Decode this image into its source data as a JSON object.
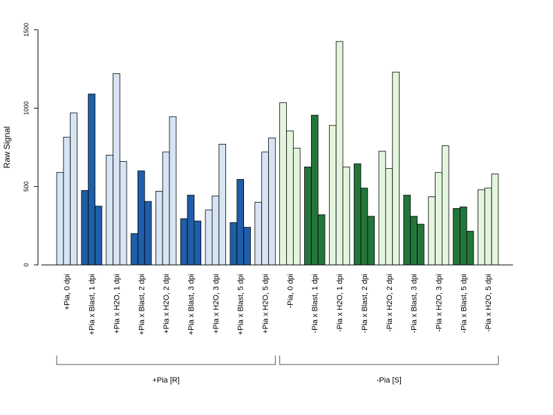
{
  "chart_data": {
    "type": "bar",
    "ylabel": "Raw Signal",
    "ylim": [
      0,
      1500
    ],
    "yticks": [
      0,
      500,
      1000,
      1500
    ],
    "grid": false,
    "legend": "none",
    "bars_per_category": 3,
    "categories": [
      {
        "label": "+Pia, 0 dpi",
        "values": [
          590,
          815,
          970
        ],
        "color": "light-blue"
      },
      {
        "label": "+Pia x Blast, 1 dpi",
        "values": [
          475,
          1090,
          375
        ],
        "color": "dark-blue"
      },
      {
        "label": "+Pia x H2O, 1 dpi",
        "values": [
          700,
          1220,
          660
        ],
        "color": "light-blue"
      },
      {
        "label": "+Pia x Blast, 2 dpi",
        "values": [
          200,
          600,
          405
        ],
        "color": "dark-blue"
      },
      {
        "label": "+Pia x H2O, 2 dpi",
        "values": [
          470,
          720,
          945
        ],
        "color": "light-blue"
      },
      {
        "label": "+Pia x Blast, 3 dpi",
        "values": [
          295,
          445,
          280
        ],
        "color": "dark-blue"
      },
      {
        "label": "+Pia x H2O, 3 dpi",
        "values": [
          350,
          440,
          770
        ],
        "color": "light-blue"
      },
      {
        "label": "+Pia x Blast, 5 dpi",
        "values": [
          270,
          545,
          240
        ],
        "color": "dark-blue"
      },
      {
        "label": "+Pia x H2O, 5 dpi",
        "values": [
          400,
          720,
          810
        ],
        "color": "light-blue"
      },
      {
        "label": "-Pia, 0 dpi",
        "values": [
          1035,
          855,
          745
        ],
        "color": "light-green"
      },
      {
        "label": "-Pia x Blast, 1 dpi",
        "values": [
          625,
          955,
          320
        ],
        "color": "dark-green"
      },
      {
        "label": "-Pia x H2O, 1 dpi",
        "values": [
          890,
          1425,
          625
        ],
        "color": "light-green"
      },
      {
        "label": "-Pia x Blast, 2 dpi",
        "values": [
          645,
          490,
          310
        ],
        "color": "dark-green"
      },
      {
        "label": "-Pia x H2O, 2 dpi",
        "values": [
          725,
          615,
          1230
        ],
        "color": "light-green"
      },
      {
        "label": "-Pia x Blast, 3 dpi",
        "values": [
          445,
          310,
          260
        ],
        "color": "dark-green"
      },
      {
        "label": "-Pia x H2O, 3 dpi",
        "values": [
          435,
          590,
          760
        ],
        "color": "light-green"
      },
      {
        "label": "-Pia x Blast, 5 dpi",
        "values": [
          360,
          370,
          215
        ],
        "color": "dark-green"
      },
      {
        "label": "-Pia x H2O, 5 dpi",
        "values": [
          480,
          490,
          580
        ],
        "color": "light-green"
      }
    ],
    "groups": [
      {
        "label": "+Pia [R]",
        "first": 0,
        "last": 8
      },
      {
        "label": "-Pia [S]",
        "first": 9,
        "last": 17
      }
    ]
  },
  "colors": {
    "light-blue": "#d6e4f3",
    "dark-blue": "#1f5ea8",
    "light-green": "#e3f6dd",
    "dark-green": "#23763a",
    "bar_border": "#000000",
    "axis": "#000000",
    "bracket": "#555555"
  }
}
